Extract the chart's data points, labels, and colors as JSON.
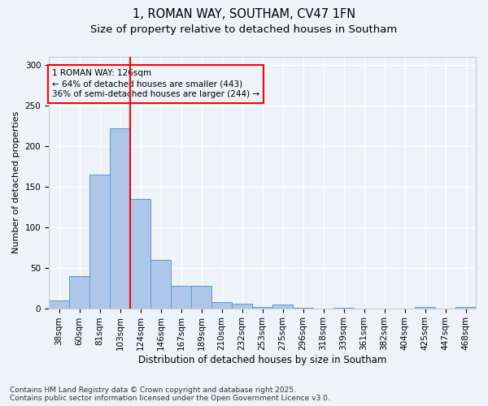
{
  "title1": "1, ROMAN WAY, SOUTHAM, CV47 1FN",
  "title2": "Size of property relative to detached houses in Southam",
  "xlabel": "Distribution of detached houses by size in Southam",
  "ylabel": "Number of detached properties",
  "bin_labels": [
    "38sqm",
    "60sqm",
    "81sqm",
    "103sqm",
    "124sqm",
    "146sqm",
    "167sqm",
    "189sqm",
    "210sqm",
    "232sqm",
    "253sqm",
    "275sqm",
    "296sqm",
    "318sqm",
    "339sqm",
    "361sqm",
    "382sqm",
    "404sqm",
    "425sqm",
    "447sqm",
    "468sqm"
  ],
  "bar_heights": [
    10,
    40,
    165,
    222,
    135,
    60,
    28,
    28,
    8,
    6,
    2,
    5,
    1,
    0,
    1,
    0,
    0,
    0,
    2,
    0,
    2
  ],
  "bar_color": "#aec6e8",
  "bar_edge_color": "#5b9bd5",
  "vline_x": 4,
  "vline_color": "red",
  "annotation_text": "1 ROMAN WAY: 126sqm\n← 64% of detached houses are smaller (443)\n36% of semi-detached houses are larger (244) →",
  "annotation_box_color": "red",
  "annotation_fontsize": 7.5,
  "footer_text": "Contains HM Land Registry data © Crown copyright and database right 2025.\nContains public sector information licensed under the Open Government Licence v3.0.",
  "background_color": "#eef2f9",
  "ylim": [
    0,
    310
  ],
  "yticks": [
    0,
    50,
    100,
    150,
    200,
    250,
    300
  ],
  "title_fontsize": 10.5,
  "subtitle_fontsize": 9.5,
  "xlabel_fontsize": 8.5,
  "ylabel_fontsize": 8,
  "tick_fontsize": 7.5,
  "footer_fontsize": 6.5
}
